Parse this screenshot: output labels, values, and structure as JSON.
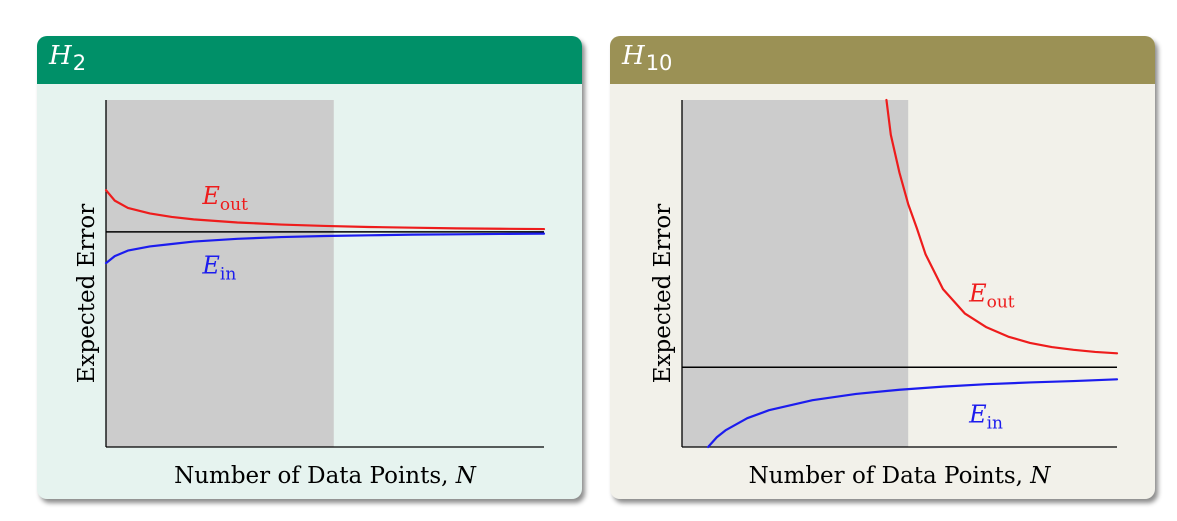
{
  "chart_data": [
    {
      "type": "line",
      "panel_title": "H",
      "panel_title_sub": "2",
      "header_color": "#009068",
      "panel_bg": "#e6f3ef",
      "xlabel": "Number of Data Points, N",
      "ylabel": "Expected Error",
      "shaded_region": [
        0,
        0.52
      ],
      "xlim": [
        0,
        1
      ],
      "ylim": [
        0,
        1
      ],
      "reference_line": 0.62,
      "series": [
        {
          "name": "Eout",
          "color": "#ee1c1c",
          "x": [
            0,
            0.02,
            0.05,
            0.1,
            0.15,
            0.2,
            0.3,
            0.4,
            0.5,
            0.6,
            0.7,
            0.8,
            0.9,
            1.0
          ],
          "y": [
            0.74,
            0.71,
            0.689,
            0.673,
            0.663,
            0.656,
            0.647,
            0.641,
            0.637,
            0.634,
            0.632,
            0.63,
            0.629,
            0.628
          ]
        },
        {
          "name": "Ein",
          "color": "#1c1cee",
          "x": [
            0,
            0.02,
            0.05,
            0.1,
            0.15,
            0.2,
            0.3,
            0.4,
            0.5,
            0.6,
            0.7,
            0.8,
            0.9,
            1.0
          ],
          "y": [
            0.53,
            0.55,
            0.566,
            0.578,
            0.585,
            0.592,
            0.6,
            0.605,
            0.608,
            0.61,
            0.612,
            0.613,
            0.614,
            0.615
          ]
        }
      ],
      "annotations": [
        {
          "text": "E",
          "sub": "out",
          "color": "#ee1c1c",
          "x": 0.22,
          "y": 0.7
        },
        {
          "text": "E",
          "sub": "in",
          "color": "#1c1cee",
          "x": 0.22,
          "y": 0.5
        }
      ]
    },
    {
      "type": "line",
      "panel_title": "H",
      "panel_title_sub": "10",
      "header_color": "#9b9155",
      "panel_bg": "#f2f1ea",
      "xlabel": "Number of Data Points, N",
      "ylabel": "Expected Error",
      "shaded_region": [
        0,
        0.52
      ],
      "xlim": [
        0,
        1
      ],
      "ylim": [
        0,
        1
      ],
      "reference_line": 0.23,
      "series": [
        {
          "name": "Eout",
          "color": "#ee1c1c",
          "x": [
            0.47,
            0.48,
            0.5,
            0.52,
            0.54,
            0.56,
            0.6,
            0.65,
            0.7,
            0.75,
            0.8,
            0.85,
            0.9,
            0.95,
            1.0
          ],
          "y": [
            1.0,
            0.9,
            0.79,
            0.7,
            0.63,
            0.555,
            0.455,
            0.385,
            0.345,
            0.318,
            0.3,
            0.288,
            0.28,
            0.274,
            0.27
          ]
        },
        {
          "name": "Ein",
          "color": "#1c1cee",
          "x": [
            0.06,
            0.08,
            0.1,
            0.15,
            0.2,
            0.3,
            0.4,
            0.5,
            0.6,
            0.7,
            0.8,
            0.9,
            1.0
          ],
          "y": [
            0.0,
            0.028,
            0.048,
            0.083,
            0.106,
            0.135,
            0.153,
            0.165,
            0.174,
            0.181,
            0.186,
            0.19,
            0.195
          ]
        }
      ],
      "annotations": [
        {
          "text": "E",
          "sub": "out",
          "color": "#ee1c1c",
          "x": 0.66,
          "y": 0.42
        },
        {
          "text": "E",
          "sub": "in",
          "color": "#1c1cee",
          "x": 0.66,
          "y": 0.07
        }
      ]
    }
  ]
}
